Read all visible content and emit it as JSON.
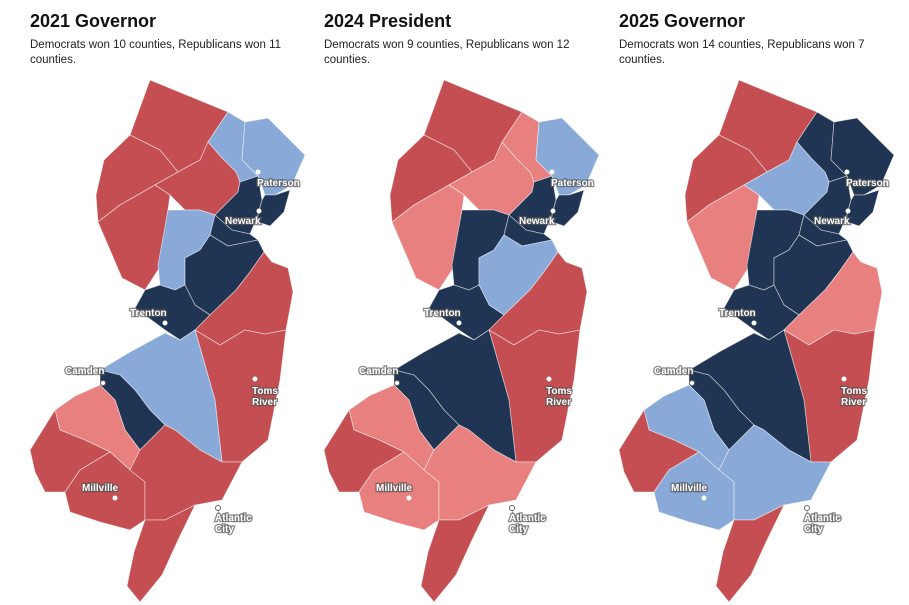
{
  "colors": {
    "dem_strong": "#1f3553",
    "dem_lean": "#89aad9",
    "rep_strong": "#c44e52",
    "rep_lean": "#e88080"
  },
  "maps": [
    {
      "title": "2021 Governor",
      "subtitle": "Democrats won 10 counties, Republicans won 11 counties.",
      "results": {
        "Sussex": "rep_strong",
        "Warren": "rep_strong",
        "Morris": "rep_strong",
        "Hunterdon": "rep_strong",
        "Passaic": "dem_lean",
        "Bergen": "dem_lean",
        "Somerset": "dem_lean",
        "Essex": "dem_strong",
        "Hudson": "dem_strong",
        "Union": "dem_strong",
        "Middlesex": "dem_strong",
        "Mercer": "dem_strong",
        "Monmouth": "rep_strong",
        "Ocean": "rep_strong",
        "Burlington": "dem_lean",
        "Camden": "dem_strong",
        "Gloucester": "rep_lean",
        "Salem": "rep_strong",
        "Cumberland": "rep_strong",
        "Atlantic": "rep_strong",
        "Cape May": "rep_strong"
      }
    },
    {
      "title": "2024 President",
      "subtitle": "Democrats won 9 counties, Republicans won 12 counties.",
      "results": {
        "Sussex": "rep_strong",
        "Warren": "rep_strong",
        "Morris": "rep_lean",
        "Hunterdon": "rep_lean",
        "Passaic": "rep_lean",
        "Bergen": "dem_lean",
        "Somerset": "dem_strong",
        "Essex": "dem_strong",
        "Hudson": "dem_strong",
        "Union": "dem_strong",
        "Middlesex": "dem_lean",
        "Mercer": "dem_strong",
        "Monmouth": "rep_strong",
        "Ocean": "rep_strong",
        "Burlington": "dem_strong",
        "Camden": "dem_strong",
        "Gloucester": "rep_lean",
        "Salem": "rep_strong",
        "Cumberland": "rep_lean",
        "Atlantic": "rep_lean",
        "Cape May": "rep_strong"
      }
    },
    {
      "title": "2025 Governor",
      "subtitle": "Democrats won 14 counties, Republicans won 7 counties.",
      "results": {
        "Sussex": "rep_strong",
        "Warren": "rep_strong",
        "Morris": "dem_lean",
        "Hunterdon": "rep_lean",
        "Passaic": "dem_strong",
        "Bergen": "dem_strong",
        "Somerset": "dem_strong",
        "Essex": "dem_strong",
        "Hudson": "dem_strong",
        "Union": "dem_strong",
        "Middlesex": "dem_strong",
        "Mercer": "dem_strong",
        "Monmouth": "rep_lean",
        "Ocean": "rep_strong",
        "Burlington": "dem_strong",
        "Camden": "dem_strong",
        "Gloucester": "dem_lean",
        "Salem": "rep_strong",
        "Cumberland": "dem_lean",
        "Atlantic": "dem_lean",
        "Cape May": "rep_strong"
      }
    }
  ],
  "cities": [
    {
      "name": "Paterson",
      "lines": [
        "Paterson"
      ],
      "style": "light-on-dark"
    },
    {
      "name": "Newark",
      "lines": [
        "Newark"
      ],
      "style": "light-on-dark"
    },
    {
      "name": "Trenton",
      "lines": [
        "Trenton"
      ],
      "style": "light-on-dark"
    },
    {
      "name": "Camden",
      "lines": [
        "Camden"
      ],
      "style": "outlined"
    },
    {
      "name": "Toms River",
      "lines": [
        "Toms",
        "River"
      ],
      "style": "light-on-dark"
    },
    {
      "name": "Millville",
      "lines": [
        "Millville"
      ],
      "style": "light-on-dark"
    },
    {
      "name": "Atlantic City",
      "lines": [
        "Atlantic",
        "City"
      ],
      "style": "outlined"
    }
  ]
}
